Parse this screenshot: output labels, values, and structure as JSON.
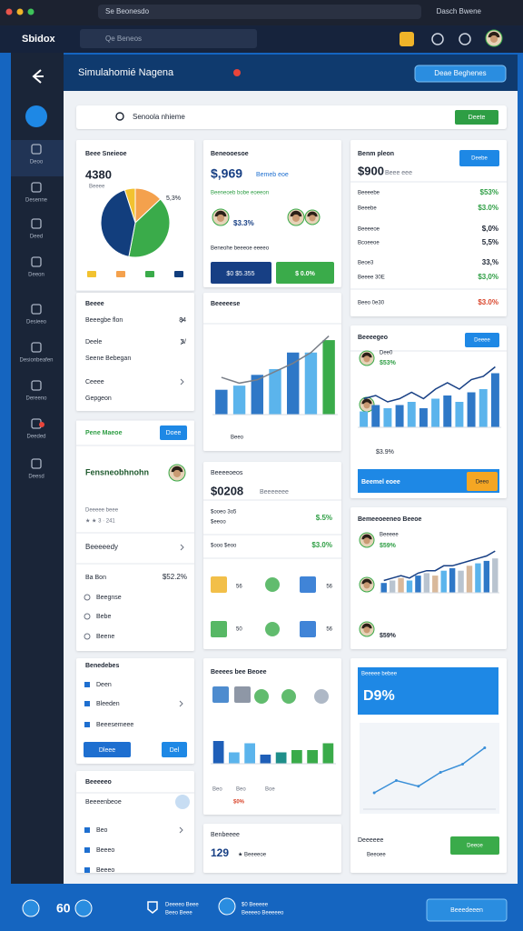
{
  "browser": {
    "tab": "Se Beonesdo",
    "user": "Dasch Bwene"
  },
  "app": {
    "logo": "Sbidox",
    "search": "Qe Beneos"
  },
  "sidebar": [
    "Deoo",
    "Desenne",
    "Deed",
    "Deeon",
    "Desieeo",
    "Desionbeafen",
    "Dereeno",
    "Deeded",
    "Deesd"
  ],
  "header": {
    "title": "Simulahomié Nagena",
    "button": "Deae Beghenes"
  },
  "search": {
    "placeholder": "Senoola nhieme",
    "button": "Deete"
  },
  "pie_card": {
    "title": "Beee Sneieoe",
    "total": "4380",
    "caption": "Beeee",
    "callout": "5,3%"
  },
  "list_card": {
    "title": "Beeee",
    "rows": [
      "Beeegbe flon",
      "Deele",
      "Seene Bebegan",
      "Ceeee",
      "Gepgeon"
    ],
    "values": [
      "84",
      "3/"
    ]
  },
  "profile_card": {
    "header": "Pene Maeoe",
    "button": "Doee",
    "name": "Fensneobhnohn",
    "meta": "Deeeee beee",
    "rating": "★ ★ 3 · 241",
    "link": "Beeeeedy",
    "stat_label": "Ba Bon",
    "stat_value": "$52.2%",
    "items": [
      "Beegnse",
      "Bebe",
      "Beene"
    ]
  },
  "tasks_card": {
    "title": "Benedebes",
    "items": [
      "Deen",
      "Bleeden",
      "Beeesemeee"
    ],
    "primary": "Dleee",
    "secondary": "Del"
  },
  "contacts_card": {
    "title": "Beeeeeo",
    "subtitle": "Beeeenbeoe",
    "items": [
      "Beo",
      "Beeeo",
      "Beeeo"
    ]
  },
  "summary_card": {
    "title": "Beneooesoe",
    "amount": "$,969",
    "amount_note": "Bemeb eoe",
    "trend": "Beeneoeb bobe eoeeon",
    "stat_a": "$3.3%",
    "caption": "Beneohe beeeoe eeeeo",
    "button_a": "$0 $5.355",
    "button_b": "$ 0.0%"
  },
  "growth_card": {
    "title": "Beeeeese",
    "legend": "Beeo"
  },
  "revenue_card": {
    "title": "Beeeeoeos",
    "amount": "$0208",
    "amount_note": "Beeeeeee",
    "rows": [
      {
        "label": "$ooeo 3o5",
        "sub": "$eeoo",
        "value": "$.5%"
      },
      {
        "label": "$ooo $eoo",
        "value": "$3.0%"
      }
    ],
    "counts": [
      "56",
      "56",
      "50",
      "56"
    ]
  },
  "compare_card": {
    "title": "Beeees bee Beoee",
    "labels": [
      "Beo",
      "Beo",
      "Boe"
    ],
    "legend": "$0%"
  },
  "rating_card": {
    "title": "Benbeeee",
    "score": "129",
    "note": "★ Beeeeoe"
  },
  "plan_card": {
    "title": "Benm pleon",
    "button": "Deebe",
    "amount": "$900",
    "amount_note": "Beee eee",
    "rows": [
      {
        "label": "Beeeebe",
        "value": "$53%",
        "color": "#2e9e44"
      },
      {
        "label": "Beeebe",
        "value": "$3.0%",
        "color": "#2e9e44"
      },
      {
        "label": "Beeeeoe",
        "value": "$,0%",
        "color": "#1d2533"
      },
      {
        "label": "Bcoeeoe",
        "value": "5,5%",
        "color": "#1d2533"
      },
      {
        "label": "Beoe3",
        "value": "33,%",
        "color": "#1d2533"
      },
      {
        "label": "Beeee 30E",
        "value": "$3,0%",
        "color": "#2e9e44"
      },
      {
        "label": "Beeo 0e30",
        "value": "$3.0%",
        "color": "#d9452b"
      }
    ]
  },
  "team_card": {
    "title": "Beeeegeo",
    "button": "Deeee",
    "member": "Dee0",
    "member_stat": "$53%",
    "stat": "$3.9%",
    "banner": "Beemel eoee",
    "banner_button": "Deeo"
  },
  "trend_card": {
    "title": "Bemeeoeeneo Beeoe",
    "member": "Beeeee",
    "member_stat": "$59%",
    "footer_stat": "$59%"
  },
  "goal_card": {
    "label": "Beeeee bebee",
    "value": "D9%",
    "footer": "Deeeeee",
    "footer_note": "Beeoee",
    "button": "Deeoe"
  },
  "footer": {
    "badge": "60",
    "items": [
      {
        "title": "Deeeeo Beee",
        "sub": "Beeo Beee"
      },
      {
        "title": "$0 Beeeee",
        "sub": "Beeeeo Beeeeeo"
      }
    ],
    "button": "Beeedeeen"
  },
  "charts": [
    {
      "type": "pie",
      "values": [
        5,
        13,
        40,
        42
      ],
      "colors": [
        "#f2c230",
        "#f4a14d",
        "#3aab4a",
        "#123e7d"
      ]
    },
    {
      "type": "bar",
      "ylim": [
        0,
        100
      ],
      "values": [
        30,
        35,
        48,
        55,
        75,
        75,
        90
      ],
      "colors": [
        "#2f78c7",
        "#5bb4ec",
        "#2f78c7",
        "#5bb4ec",
        "#2f78c7",
        "#5bb4ec",
        "#3aab4a"
      ],
      "line": [
        45,
        38,
        42,
        52,
        62,
        75,
        95
      ],
      "line_color": "#7a7f88"
    },
    {
      "type": "bar",
      "ylim": [
        0,
        100
      ],
      "values": [
        25,
        35,
        30,
        35,
        40,
        30,
        45,
        50,
        40,
        55,
        60,
        85
      ],
      "colors": [
        "#5bb4ec",
        "#2f78c7"
      ],
      "line": [
        45,
        50,
        40,
        45,
        55,
        45,
        60,
        70,
        60,
        75,
        80,
        95
      ],
      "line_color": "#173f84"
    },
    {
      "type": "bar",
      "ylim": [
        0,
        100
      ],
      "values": [
        20,
        25,
        30,
        25,
        35,
        40,
        35,
        45,
        50,
        45,
        55,
        60,
        65,
        70
      ],
      "colors": [
        "#2f78c7",
        "#b9c4d0",
        "#d9b99b",
        "#5bb4ec"
      ],
      "line": [
        25,
        30,
        35,
        30,
        40,
        45,
        45,
        55,
        55,
        60,
        65,
        70,
        75,
        85
      ],
      "line_color": "#173f84"
    },
    {
      "type": "bar",
      "ylim": [
        0,
        100
      ],
      "values": [
        50,
        25,
        45,
        20,
        25,
        30,
        30,
        45
      ],
      "colors": [
        "#1f5fb8",
        "#5bb4ec",
        "#5bb4ec",
        "#1f5fb8",
        "#1f8f8a",
        "#3aab4a",
        "#3aab4a",
        "#3aab4a"
      ]
    },
    {
      "type": "line",
      "ylim": [
        0,
        100
      ],
      "values": [
        20,
        35,
        28,
        45,
        55,
        75
      ],
      "line_color": "#3a8fd8"
    }
  ]
}
